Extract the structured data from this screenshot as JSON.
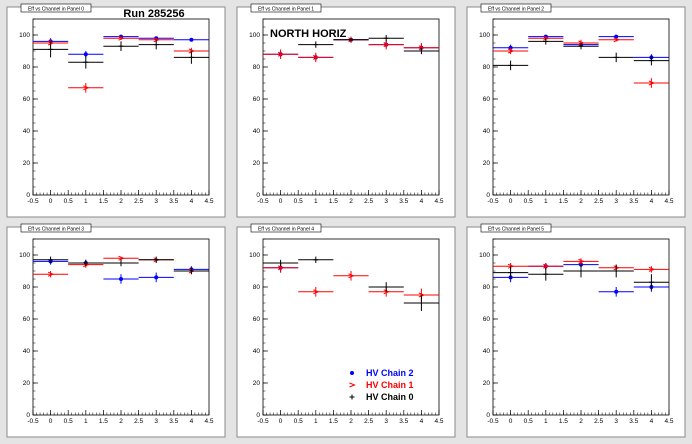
{
  "page": {
    "run_label": "Run 285256",
    "region_label": "NORTH HORIZ"
  },
  "legend": {
    "items": [
      {
        "label": "HV Chain 2",
        "color": "#0000ff",
        "marker": "dot"
      },
      {
        "label": "HV Chain 1",
        "color": "#ff0000",
        "marker": "arrow"
      },
      {
        "label": "HV Chain 0",
        "color": "#000000",
        "marker": "plus"
      }
    ]
  },
  "chart_data": [
    {
      "type": "scatter",
      "pad_title": "Eff vs Channel in Panel 0",
      "xlim": [
        -0.5,
        4.5
      ],
      "ylim": [
        0,
        110
      ],
      "xticks": [
        "-0.5",
        "0",
        "0.5",
        "1",
        "1.5",
        "2",
        "2.5",
        "3",
        "3.5",
        "4",
        "4.5"
      ],
      "yticks": [
        "0",
        "20",
        "40",
        "60",
        "80",
        "100"
      ],
      "series": [
        {
          "color": "#0000ff",
          "x": [
            0,
            1,
            2,
            3,
            4
          ],
          "y": [
            96,
            88,
            99,
            98,
            97
          ],
          "yerr": [
            2,
            2,
            1,
            1,
            1
          ]
        },
        {
          "color": "#ff0000",
          "x": [
            0,
            1,
            2,
            3,
            4
          ],
          "y": [
            95,
            67,
            98,
            97,
            90
          ],
          "yerr": [
            2,
            3,
            1,
            1,
            2
          ]
        },
        {
          "color": "#000000",
          "x": [
            0,
            1,
            2,
            3,
            4
          ],
          "y": [
            91,
            83,
            93,
            94,
            86
          ],
          "yerr": [
            5,
            4,
            3,
            3,
            4
          ]
        }
      ]
    },
    {
      "type": "scatter",
      "pad_title": "Eff vs Channel in Panel 1",
      "xlim": [
        -0.5,
        4.5
      ],
      "ylim": [
        0,
        110
      ],
      "xticks": [
        "-0.5",
        "0",
        "0.5",
        "1",
        "1.5",
        "2",
        "2.5",
        "3",
        "3.5",
        "4",
        "4.5"
      ],
      "yticks": [
        "0",
        "20",
        "40",
        "60",
        "80",
        "100"
      ],
      "series": [
        {
          "color": "#0000ff",
          "x": [
            0,
            1,
            2,
            3,
            4
          ],
          "y": [
            88,
            86,
            97,
            94,
            92
          ],
          "yerr": [
            2,
            2,
            1,
            2,
            2
          ]
        },
        {
          "color": "#ff0000",
          "x": [
            0,
            1,
            2,
            3,
            4
          ],
          "y": [
            88,
            86,
            97,
            94,
            92
          ],
          "yerr": [
            3,
            3,
            2,
            3,
            3
          ]
        },
        {
          "color": "#000000",
          "x": [
            1,
            2,
            3,
            4
          ],
          "y": [
            94,
            97,
            98,
            90
          ],
          "yerr": [
            2,
            1,
            2,
            2
          ]
        }
      ]
    },
    {
      "type": "scatter",
      "pad_title": "Eff vs Channel in Panel 2",
      "xlim": [
        -0.5,
        4.5
      ],
      "ylim": [
        0,
        110
      ],
      "xticks": [
        "-0.5",
        "0",
        "0.5",
        "1",
        "1.5",
        "2",
        "2.5",
        "3",
        "3.5",
        "4",
        "4.5"
      ],
      "yticks": [
        "0",
        "20",
        "40",
        "60",
        "80",
        "100"
      ],
      "series": [
        {
          "color": "#0000ff",
          "x": [
            0,
            1,
            2,
            3,
            4
          ],
          "y": [
            92,
            99,
            94,
            99,
            86
          ],
          "yerr": [
            2,
            1,
            2,
            1,
            2
          ]
        },
        {
          "color": "#ff0000",
          "x": [
            0,
            1,
            2,
            3,
            4
          ],
          "y": [
            90,
            98,
            95,
            97,
            70
          ],
          "yerr": [
            2,
            1,
            2,
            1,
            3
          ]
        },
        {
          "color": "#000000",
          "x": [
            0,
            1,
            2,
            3,
            4
          ],
          "y": [
            81,
            96,
            93,
            86,
            84
          ],
          "yerr": [
            3,
            2,
            2,
            3,
            3
          ]
        }
      ]
    },
    {
      "type": "scatter",
      "pad_title": "Eff vs Channel in Panel 3",
      "xlim": [
        -0.5,
        4.5
      ],
      "ylim": [
        0,
        110
      ],
      "xticks": [
        "-0.5",
        "0",
        "0.5",
        "1",
        "1.5",
        "2",
        "2.5",
        "3",
        "3.5",
        "4",
        "4.5"
      ],
      "yticks": [
        "0",
        "20",
        "40",
        "60",
        "80",
        "100"
      ],
      "series": [
        {
          "color": "#0000ff",
          "x": [
            0,
            1,
            2,
            3,
            4
          ],
          "y": [
            96,
            95,
            85,
            86,
            91
          ],
          "yerr": [
            2,
            2,
            3,
            3,
            2
          ]
        },
        {
          "color": "#ff0000",
          "x": [
            0,
            1,
            2,
            3,
            4
          ],
          "y": [
            88,
            94,
            98,
            97,
            90
          ],
          "yerr": [
            2,
            2,
            1,
            1,
            2
          ]
        },
        {
          "color": "#000000",
          "x": [
            0,
            1,
            2,
            3,
            4
          ],
          "y": [
            97,
            95,
            95,
            97,
            90
          ],
          "yerr": [
            2,
            2,
            2,
            2,
            2
          ]
        }
      ]
    },
    {
      "type": "scatter",
      "pad_title": "Eff vs Channel in Panel 4",
      "xlim": [
        -0.5,
        4.5
      ],
      "ylim": [
        0,
        110
      ],
      "xticks": [
        "-0.5",
        "0",
        "0.5",
        "1",
        "1.5",
        "2",
        "2.5",
        "3",
        "3.5",
        "4",
        "4.5"
      ],
      "yticks": [
        "0",
        "20",
        "40",
        "60",
        "80",
        "100"
      ],
      "series": [
        {
          "color": "#0000ff",
          "x": [
            0
          ],
          "y": [
            92
          ],
          "yerr": [
            3
          ]
        },
        {
          "color": "#ff0000",
          "x": [
            0,
            1,
            2,
            3,
            4
          ],
          "y": [
            92,
            77,
            87,
            77,
            75
          ],
          "yerr": [
            3,
            3,
            3,
            3,
            4
          ]
        },
        {
          "color": "#000000",
          "x": [
            0,
            1,
            3,
            4
          ],
          "y": [
            95,
            97,
            80,
            70
          ],
          "yerr": [
            2,
            2,
            3,
            5
          ]
        }
      ]
    },
    {
      "type": "scatter",
      "pad_title": "Eff vs Channel in Panel 5",
      "xlim": [
        -0.5,
        4.5
      ],
      "ylim": [
        0,
        110
      ],
      "xticks": [
        "-0.5",
        "0",
        "0.5",
        "1",
        "1.5",
        "2",
        "2.5",
        "3",
        "3.5",
        "4",
        "4.5"
      ],
      "yticks": [
        "0",
        "20",
        "40",
        "60",
        "80",
        "100"
      ],
      "series": [
        {
          "color": "#0000ff",
          "x": [
            0,
            1,
            2,
            3,
            4
          ],
          "y": [
            86,
            93,
            94,
            77,
            80
          ],
          "yerr": [
            3,
            2,
            2,
            3,
            3
          ]
        },
        {
          "color": "#ff0000",
          "x": [
            0,
            1,
            2,
            3,
            4
          ],
          "y": [
            93,
            93,
            96,
            92,
            91
          ],
          "yerr": [
            2,
            2,
            2,
            2,
            2
          ]
        },
        {
          "color": "#000000",
          "x": [
            0,
            1,
            2,
            3,
            4
          ],
          "y": [
            89,
            88,
            90,
            90,
            83
          ],
          "yerr": [
            4,
            4,
            4,
            4,
            5
          ]
        }
      ]
    }
  ]
}
